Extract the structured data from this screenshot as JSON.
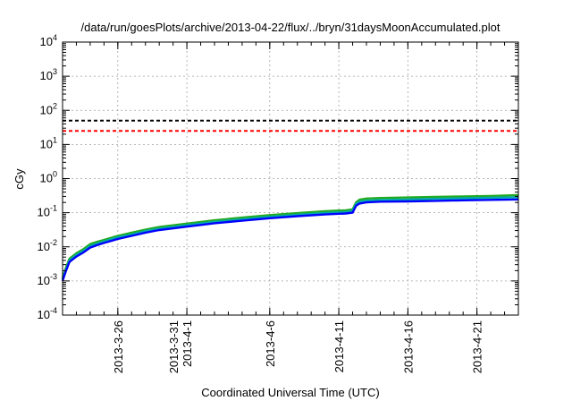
{
  "chart_data": {
    "type": "line",
    "title": "/data/run/goesPlots/archive/2013-04-22/flux/../bryn/31daysMoonAccumulated.plot",
    "xlabel": "Coordinated Universal Time (UTC)",
    "ylabel": "cGy",
    "y_scale": "log",
    "ylim": [
      0.0001,
      10000
    ],
    "xlim": [
      "2013-03-22",
      "2013-04-24"
    ],
    "y_ticks": [
      {
        "base": "10",
        "exp": "-4",
        "value": 0.0001
      },
      {
        "base": "10",
        "exp": "-3",
        "value": 0.001
      },
      {
        "base": "10",
        "exp": "-2",
        "value": 0.01
      },
      {
        "base": "10",
        "exp": "-1",
        "value": 0.1
      },
      {
        "base": "10",
        "exp": "0",
        "value": 1
      },
      {
        "base": "10",
        "exp": "1",
        "value": 10
      },
      {
        "base": "10",
        "exp": "2",
        "value": 100
      },
      {
        "base": "10",
        "exp": "3",
        "value": 1000
      },
      {
        "base": "10",
        "exp": "4",
        "value": 10000
      }
    ],
    "x_ticks": [
      {
        "date": "2013-03-26",
        "lines": [
          "2013-3-26"
        ]
      },
      {
        "date": "2013-03-31",
        "lines": [
          "2013-3-31",
          "2013-4-1"
        ]
      },
      {
        "date": "2013-04-06",
        "lines": [
          "2013-4-6"
        ]
      },
      {
        "date": "2013-04-11",
        "lines": [
          "2013-4-11"
        ]
      },
      {
        "date": "2013-04-16",
        "lines": [
          "2013-4-16"
        ]
      },
      {
        "date": "2013-04-21",
        "lines": [
          "2013-4-21"
        ]
      }
    ],
    "grid": true,
    "reference_lines": [
      {
        "value": 50,
        "color": "#000000",
        "style": "dashed"
      },
      {
        "value": 25,
        "color": "#ff0000",
        "style": "dashed"
      }
    ],
    "series": [
      {
        "color": "#22aa22",
        "x": [
          "2013-03-22T00:00",
          "2013-03-22T06:00",
          "2013-03-22T12:00",
          "2013-03-23T00:00",
          "2013-03-23T12:00",
          "2013-03-24T00:00",
          "2013-03-24T12:00",
          "2013-03-25T00:00",
          "2013-03-26T00:00",
          "2013-03-27T00:00",
          "2013-03-28T00:00",
          "2013-03-29T00:00",
          "2013-03-31T00:00",
          "2013-04-02T00:00",
          "2013-04-04T00:00",
          "2013-04-06T00:00",
          "2013-04-08T00:00",
          "2013-04-10T00:00",
          "2013-04-11T12:00",
          "2013-04-12T00:00",
          "2013-04-12T06:00",
          "2013-04-12T12:00",
          "2013-04-13T00:00",
          "2013-04-14T00:00",
          "2013-04-16T00:00",
          "2013-04-18T00:00",
          "2013-04-20T00:00",
          "2013-04-22T00:00",
          "2013-04-24T00:00"
        ],
        "y": [
          0.0012,
          0.0025,
          0.0045,
          0.0065,
          0.0085,
          0.012,
          0.014,
          0.016,
          0.021,
          0.026,
          0.032,
          0.038,
          0.048,
          0.06,
          0.072,
          0.085,
          0.097,
          0.11,
          0.118,
          0.125,
          0.2,
          0.24,
          0.26,
          0.27,
          0.28,
          0.29,
          0.3,
          0.31,
          0.33
        ]
      },
      {
        "color": "#00aaaa",
        "x": [
          "2013-03-22T00:00",
          "2013-03-22T06:00",
          "2013-03-22T12:00",
          "2013-03-23T00:00",
          "2013-03-23T12:00",
          "2013-03-24T00:00",
          "2013-03-24T12:00",
          "2013-03-25T00:00",
          "2013-03-26T00:00",
          "2013-03-27T00:00",
          "2013-03-28T00:00",
          "2013-03-29T00:00",
          "2013-03-31T00:00",
          "2013-04-02T00:00",
          "2013-04-04T00:00",
          "2013-04-06T00:00",
          "2013-04-08T00:00",
          "2013-04-10T00:00",
          "2013-04-11T12:00",
          "2013-04-12T00:00",
          "2013-04-12T06:00",
          "2013-04-12T12:00",
          "2013-04-13T00:00",
          "2013-04-14T00:00",
          "2013-04-16T00:00",
          "2013-04-18T00:00",
          "2013-04-20T00:00",
          "2013-04-22T00:00",
          "2013-04-24T00:00"
        ],
        "y": [
          0.0011,
          0.0022,
          0.004,
          0.0058,
          0.0076,
          0.0105,
          0.0125,
          0.0145,
          0.019,
          0.023,
          0.029,
          0.034,
          0.043,
          0.054,
          0.064,
          0.076,
          0.087,
          0.098,
          0.105,
          0.112,
          0.18,
          0.21,
          0.225,
          0.235,
          0.245,
          0.255,
          0.265,
          0.275,
          0.285
        ]
      },
      {
        "color": "#0000ff",
        "x": [
          "2013-03-22T00:00",
          "2013-03-22T06:00",
          "2013-03-22T12:00",
          "2013-03-23T00:00",
          "2013-03-23T12:00",
          "2013-03-24T00:00",
          "2013-03-24T12:00",
          "2013-03-25T00:00",
          "2013-03-26T00:00",
          "2013-03-27T00:00",
          "2013-03-28T00:00",
          "2013-03-29T00:00",
          "2013-03-31T00:00",
          "2013-04-02T00:00",
          "2013-04-04T00:00",
          "2013-04-06T00:00",
          "2013-04-08T00:00",
          "2013-04-10T00:00",
          "2013-04-11T12:00",
          "2013-04-12T00:00",
          "2013-04-12T06:00",
          "2013-04-12T12:00",
          "2013-04-13T00:00",
          "2013-04-14T00:00",
          "2013-04-16T00:00",
          "2013-04-18T00:00",
          "2013-04-20T00:00",
          "2013-04-22T00:00",
          "2013-04-24T00:00"
        ],
        "y": [
          0.001,
          0.002,
          0.0036,
          0.0052,
          0.0068,
          0.0095,
          0.0112,
          0.013,
          0.017,
          0.021,
          0.026,
          0.031,
          0.039,
          0.049,
          0.058,
          0.069,
          0.079,
          0.089,
          0.095,
          0.1,
          0.16,
          0.185,
          0.2,
          0.21,
          0.215,
          0.222,
          0.23,
          0.238,
          0.245
        ]
      }
    ]
  }
}
